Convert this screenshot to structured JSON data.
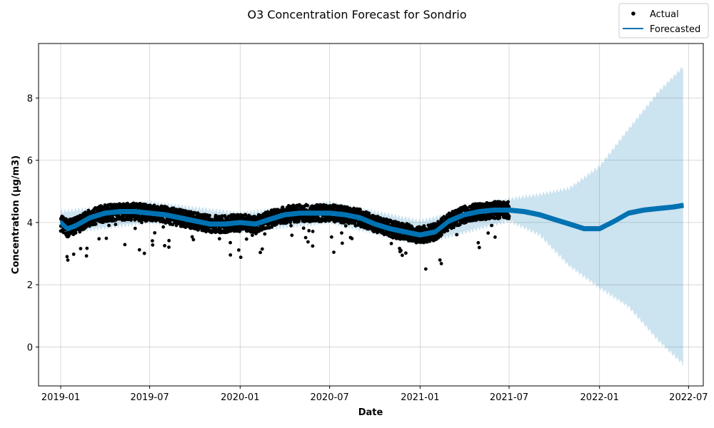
{
  "chart_data": {
    "type": "line",
    "title": "O3 Concentration Forecast for Sondrio",
    "xlabel": "Date",
    "ylabel": "Concentration (µg/m3)",
    "xlim": [
      "2018-11-17",
      "2022-07-31"
    ],
    "ylim": [
      -1.25,
      9.75
    ],
    "x_ticks": [
      "2019-01",
      "2019-07",
      "2020-01",
      "2020-07",
      "2021-01",
      "2021-07",
      "2022-01",
      "2022-07"
    ],
    "y_ticks": [
      0,
      2,
      4,
      6,
      8
    ],
    "grid": true,
    "legend": {
      "placement": "top-right",
      "entries": [
        "Actual",
        "Forecasted"
      ]
    },
    "colors": {
      "actual": "#000000",
      "forecast": "#0072b2",
      "interval": "#0072b2"
    },
    "actual_range": [
      "2019-01-01",
      "2021-07-01"
    ],
    "forecast_range": [
      "2019-01-01",
      "2022-06-20"
    ],
    "series": [
      {
        "name": "Forecasted",
        "kind": "trend",
        "x": [
          "2019-01-01",
          "2019-01-15",
          "2019-02-01",
          "2019-03-01",
          "2019-04-01",
          "2019-05-01",
          "2019-06-01",
          "2019-07-01",
          "2019-08-01",
          "2019-09-01",
          "2019-10-01",
          "2019-11-01",
          "2019-12-01",
          "2020-01-01",
          "2020-02-01",
          "2020-03-01",
          "2020-04-01",
          "2020-05-01",
          "2020-06-01",
          "2020-07-01",
          "2020-08-01",
          "2020-09-01",
          "2020-10-01",
          "2020-11-01",
          "2020-12-01",
          "2021-01-01",
          "2021-02-01",
          "2021-03-01",
          "2021-04-01",
          "2021-05-01",
          "2021-06-01",
          "2021-07-01",
          "2021-08-01",
          "2021-09-01",
          "2021-10-01",
          "2021-11-01",
          "2021-12-01",
          "2022-01-01",
          "2022-02-01",
          "2022-03-01",
          "2022-04-01",
          "2022-05-01",
          "2022-06-01",
          "2022-06-20"
        ],
        "values": [
          4.0,
          3.8,
          3.9,
          4.15,
          4.3,
          4.35,
          4.35,
          4.3,
          4.25,
          4.15,
          4.05,
          3.95,
          3.95,
          4.0,
          3.95,
          4.1,
          4.25,
          4.3,
          4.3,
          4.3,
          4.25,
          4.15,
          3.95,
          3.8,
          3.7,
          3.6,
          3.7,
          4.05,
          4.25,
          4.35,
          4.4,
          4.4,
          4.35,
          4.25,
          4.1,
          3.95,
          3.8,
          3.8,
          4.05,
          4.3,
          4.4,
          4.45,
          4.5,
          4.55
        ]
      },
      {
        "name": "Forecast interval upper",
        "kind": "band_upper",
        "x": [
          "2019-01-01",
          "2019-07-01",
          "2020-01-01",
          "2020-07-01",
          "2021-01-01",
          "2021-07-01",
          "2021-09-01",
          "2021-11-01",
          "2022-01-01",
          "2022-03-01",
          "2022-05-01",
          "2022-06-20"
        ],
        "values": [
          4.35,
          4.65,
          4.3,
          4.65,
          4.05,
          4.75,
          4.9,
          5.1,
          5.8,
          7.0,
          8.2,
          9.0
        ]
      },
      {
        "name": "Forecast interval lower",
        "kind": "band_lower",
        "x": [
          "2019-01-01",
          "2019-07-01",
          "2020-01-01",
          "2020-07-01",
          "2021-01-01",
          "2021-07-01",
          "2021-09-01",
          "2021-11-01",
          "2022-01-01",
          "2022-03-01",
          "2022-05-01",
          "2022-06-20"
        ],
        "values": [
          3.65,
          4.0,
          3.7,
          4.0,
          3.3,
          4.05,
          3.6,
          2.6,
          1.9,
          1.3,
          0.2,
          -0.55
        ]
      }
    ]
  }
}
